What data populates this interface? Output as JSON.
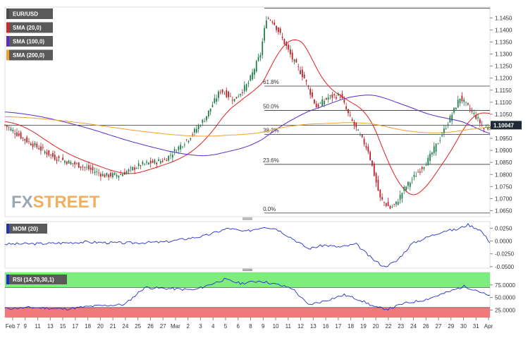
{
  "chart_data": [
    {
      "type": "candlestick",
      "symbol": "EUR/USD",
      "ylim": [
        1.0625,
        1.1495
      ],
      "y_ticks": [
        "1.1450",
        "1.1400",
        "1.1350",
        "1.1300",
        "1.1250",
        "1.1200",
        "1.1150",
        "1.1100",
        "1.1050",
        "1.1000",
        "1.0950",
        "1.0900",
        "1.0850",
        "1.0800",
        "1.0750",
        "1.0700",
        "1.0650"
      ],
      "current_price": "1.10047",
      "x_tick_labels": [
        "Feb 7",
        "9",
        "11",
        "13",
        "15",
        "17",
        "18",
        "20",
        "21",
        "24",
        "25",
        "26",
        "27",
        "Mar",
        "2",
        "3",
        "4",
        "5",
        "6",
        "8",
        "9",
        "10",
        "11",
        "12",
        "13",
        "16",
        "17",
        "18",
        "19",
        "20",
        "22",
        "23",
        "24",
        "26",
        "27",
        "29",
        "30",
        "31",
        "Apr"
      ],
      "indicators": [
        {
          "name": "SMA (20,0)",
          "color": "#e02020"
        },
        {
          "name": "SMA (100,0)",
          "color": "#5a2ad0"
        },
        {
          "name": "SMA (200,0)",
          "color": "#f0a030"
        }
      ],
      "fibonacci": [
        {
          "label": "0.0%",
          "value": 1.064
        },
        {
          "label": "23.6%",
          "value": 1.0842
        },
        {
          "label": "38.2%",
          "value": 1.0966
        },
        {
          "label": "50.0%",
          "value": 1.1066
        },
        {
          "label": "61.8%",
          "value": 1.1167
        }
      ],
      "fib_top": 1.149,
      "close_anchors": [
        [
          0,
          1.1005
        ],
        [
          10,
          1.0945
        ],
        [
          25,
          1.087
        ],
        [
          40,
          1.083
        ],
        [
          50,
          1.0795
        ],
        [
          58,
          1.08
        ],
        [
          68,
          1.084
        ],
        [
          80,
          1.086
        ],
        [
          92,
          1.095
        ],
        [
          100,
          1.103
        ],
        [
          108,
          1.115
        ],
        [
          115,
          1.111
        ],
        [
          122,
          1.118
        ],
        [
          128,
          1.13
        ],
        [
          131,
          1.145
        ],
        [
          134,
          1.144
        ],
        [
          138,
          1.138
        ],
        [
          144,
          1.128
        ],
        [
          150,
          1.12
        ],
        [
          156,
          1.108
        ],
        [
          162,
          1.112
        ],
        [
          168,
          1.113
        ],
        [
          172,
          1.105
        ],
        [
          176,
          1.099
        ],
        [
          182,
          1.09
        ],
        [
          188,
          1.07
        ],
        [
          193,
          1.066
        ],
        [
          196,
          1.068
        ],
        [
          200,
          1.074
        ],
        [
          206,
          1.08
        ],
        [
          212,
          1.086
        ],
        [
          218,
          1.095
        ],
        [
          224,
          1.105
        ],
        [
          228,
          1.112
        ],
        [
          232,
          1.108
        ],
        [
          236,
          1.104
        ],
        [
          240,
          1.099
        ],
        [
          243,
          1.1005
        ]
      ]
    },
    {
      "type": "line",
      "indicator": "MOM (20)",
      "ylim": [
        -0.053,
        0.038
      ],
      "y_ticks": [
        "0.0250",
        "0.0000",
        "-0.0250",
        "-0.0500"
      ],
      "anchors": [
        [
          0,
          -0.006
        ],
        [
          20,
          -0.005
        ],
        [
          40,
          -0.002
        ],
        [
          60,
          -0.004
        ],
        [
          80,
          -0.002
        ],
        [
          100,
          0.01
        ],
        [
          112,
          0.025
        ],
        [
          120,
          0.018
        ],
        [
          130,
          0.028
        ],
        [
          136,
          0.024
        ],
        [
          144,
          0.005
        ],
        [
          152,
          -0.015
        ],
        [
          160,
          -0.008
        ],
        [
          168,
          -0.012
        ],
        [
          176,
          -0.006
        ],
        [
          184,
          -0.035
        ],
        [
          190,
          -0.05
        ],
        [
          196,
          -0.04
        ],
        [
          204,
          -0.005
        ],
        [
          212,
          0.008
        ],
        [
          220,
          0.02
        ],
        [
          226,
          0.022
        ],
        [
          232,
          0.032
        ],
        [
          238,
          0.022
        ],
        [
          243,
          -0.002
        ]
      ]
    },
    {
      "type": "line",
      "indicator": "RSI (14,70,30,1)",
      "ylim": [
        10,
        100
      ],
      "y_ticks": [
        "75.0000",
        "50.0000",
        "25.0000"
      ],
      "levels": [
        70,
        30
      ],
      "zone_colors": {
        "overbought": "#7dee7d",
        "oversold": "#f07a7a"
      },
      "anchors": [
        [
          0,
          28
        ],
        [
          15,
          30
        ],
        [
          30,
          27
        ],
        [
          45,
          33
        ],
        [
          60,
          36
        ],
        [
          70,
          70
        ],
        [
          80,
          68
        ],
        [
          95,
          65
        ],
        [
          110,
          86
        ],
        [
          118,
          78
        ],
        [
          128,
          83
        ],
        [
          136,
          76
        ],
        [
          144,
          68
        ],
        [
          152,
          35
        ],
        [
          160,
          43
        ],
        [
          170,
          55
        ],
        [
          178,
          45
        ],
        [
          186,
          30
        ],
        [
          192,
          27
        ],
        [
          200,
          38
        ],
        [
          210,
          45
        ],
        [
          220,
          58
        ],
        [
          230,
          72
        ],
        [
          236,
          65
        ],
        [
          243,
          52
        ]
      ]
    }
  ],
  "brand": {
    "fx": "FX",
    "street": "STREET"
  }
}
